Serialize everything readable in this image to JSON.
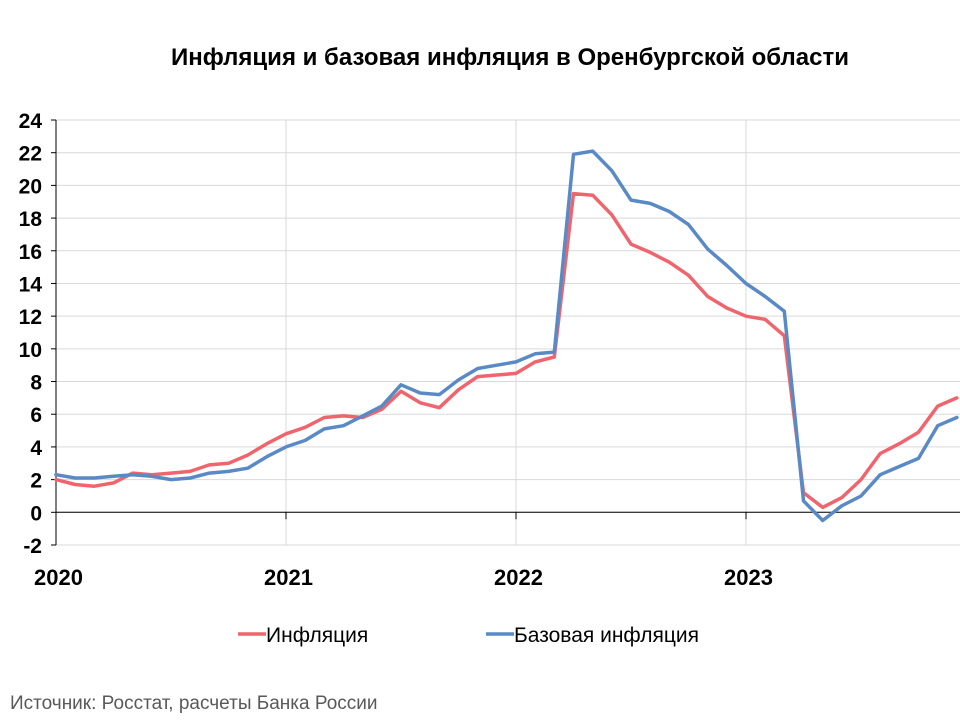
{
  "chart_data": {
    "type": "line",
    "title": "Инфляция и базовая инфляция в Оренбургской области",
    "xlabel": "",
    "ylabel": "",
    "ylim": [
      -2,
      24
    ],
    "yticks": [
      -2,
      0,
      2,
      4,
      6,
      8,
      10,
      12,
      14,
      16,
      18,
      20,
      22,
      24
    ],
    "xticks": [
      "2020",
      "2021",
      "2022",
      "2023"
    ],
    "x_start": "2020-01",
    "x_end": "2023-11",
    "grid": true,
    "legend_position": "bottom",
    "series": [
      {
        "name": "Инфляция",
        "color": "#f0656d",
        "values": [
          2.0,
          1.7,
          1.6,
          1.8,
          2.4,
          2.3,
          2.4,
          2.5,
          2.9,
          3.0,
          3.5,
          4.2,
          4.8,
          5.2,
          5.8,
          5.9,
          5.8,
          6.3,
          7.4,
          6.7,
          6.4,
          7.5,
          8.3,
          8.4,
          8.5,
          9.2,
          9.5,
          19.5,
          19.4,
          18.2,
          16.4,
          15.9,
          15.3,
          14.5,
          13.2,
          12.5,
          12.0,
          11.8,
          10.8,
          1.2,
          0.3,
          0.9,
          2.0,
          3.6,
          4.2,
          4.9,
          6.5,
          7.0
        ]
      },
      {
        "name": "Базовая инфляция",
        "color": "#5a8ac6",
        "values": [
          2.3,
          2.1,
          2.1,
          2.2,
          2.3,
          2.2,
          2.0,
          2.1,
          2.4,
          2.5,
          2.7,
          3.4,
          4.0,
          4.4,
          5.1,
          5.3,
          5.9,
          6.5,
          7.8,
          7.3,
          7.2,
          8.1,
          8.8,
          9.0,
          9.2,
          9.7,
          9.8,
          21.9,
          22.1,
          20.9,
          19.1,
          18.9,
          18.4,
          17.6,
          16.1,
          15.1,
          14.0,
          13.2,
          12.3,
          0.7,
          -0.5,
          0.4,
          1.0,
          2.3,
          2.8,
          3.3,
          5.3,
          5.8
        ]
      }
    ]
  },
  "source": "Источник: Росстат, расчеты Банка России"
}
